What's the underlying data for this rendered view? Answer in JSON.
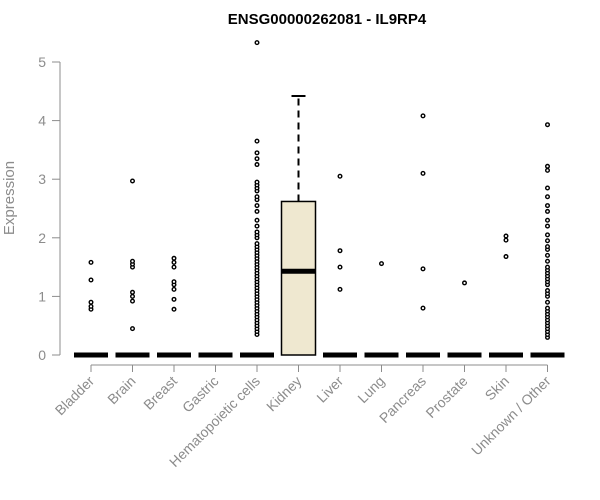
{
  "chart_data": {
    "type": "box",
    "title": "ENSG00000262081 - IL9RP4",
    "ylabel": "Expression",
    "xlabel": "",
    "ylim": [
      0,
      5.3
    ],
    "yticks": [
      0,
      1,
      2,
      3,
      4,
      5
    ],
    "grid": false,
    "box_fill": "#efe8d0",
    "categories": [
      "Bladder",
      "Brain",
      "Breast",
      "Gastric",
      "Hematopoietic cells",
      "Kidney",
      "Liver",
      "Lung",
      "Pancreas",
      "Prostate",
      "Skin",
      "Unknown / Other"
    ],
    "boxes": [
      {
        "category": "Bladder",
        "q1": 0,
        "median": 0,
        "q3": 0,
        "whisker_low": 0,
        "whisker_high": 0,
        "outliers": [
          0.78,
          0.83,
          0.9,
          1.28,
          1.58
        ]
      },
      {
        "category": "Brain",
        "q1": 0,
        "median": 0,
        "q3": 0,
        "whisker_low": 0,
        "whisker_high": 0,
        "outliers": [
          0.45,
          0.92,
          1.0,
          1.07,
          1.5,
          1.55,
          1.6,
          2.97
        ]
      },
      {
        "category": "Breast",
        "q1": 0,
        "median": 0,
        "q3": 0,
        "whisker_low": 0,
        "whisker_high": 0,
        "outliers": [
          0.78,
          0.95,
          1.12,
          1.2,
          1.25,
          1.5,
          1.58,
          1.65
        ]
      },
      {
        "category": "Gastric",
        "q1": 0,
        "median": 0,
        "q3": 0,
        "whisker_low": 0,
        "whisker_high": 0,
        "outliers": []
      },
      {
        "category": "Hematopoietic cells",
        "q1": 0,
        "median": 0,
        "q3": 0,
        "whisker_low": 0,
        "whisker_high": 0,
        "outliers": [
          0.35,
          0.4,
          0.45,
          0.5,
          0.55,
          0.6,
          0.65,
          0.7,
          0.75,
          0.8,
          0.85,
          0.9,
          0.95,
          1.0,
          1.05,
          1.1,
          1.15,
          1.2,
          1.25,
          1.3,
          1.35,
          1.4,
          1.45,
          1.5,
          1.55,
          1.6,
          1.65,
          1.7,
          1.75,
          1.8,
          1.85,
          1.9,
          2.0,
          2.05,
          2.1,
          2.2,
          2.3,
          2.45,
          2.55,
          2.65,
          2.7,
          2.8,
          2.85,
          2.9,
          2.95,
          3.25,
          3.35,
          3.45,
          3.65,
          5.33
        ]
      },
      {
        "category": "Kidney",
        "q1": 0,
        "median": 1.43,
        "q3": 2.62,
        "whisker_low": 0,
        "whisker_high": 4.42,
        "outliers": []
      },
      {
        "category": "Liver",
        "q1": 0,
        "median": 0,
        "q3": 0,
        "whisker_low": 0,
        "whisker_high": 0,
        "outliers": [
          1.12,
          1.5,
          1.78,
          3.05
        ]
      },
      {
        "category": "Lung",
        "q1": 0,
        "median": 0,
        "q3": 0,
        "whisker_low": 0,
        "whisker_high": 0,
        "outliers": [
          1.56
        ]
      },
      {
        "category": "Pancreas",
        "q1": 0,
        "median": 0,
        "q3": 0,
        "whisker_low": 0,
        "whisker_high": 0,
        "outliers": [
          0.8,
          1.47,
          3.1,
          4.08
        ]
      },
      {
        "category": "Prostate",
        "q1": 0,
        "median": 0,
        "q3": 0,
        "whisker_low": 0,
        "whisker_high": 0,
        "outliers": [
          1.23
        ]
      },
      {
        "category": "Skin",
        "q1": 0,
        "median": 0,
        "q3": 0,
        "whisker_low": 0,
        "whisker_high": 0,
        "outliers": [
          1.68,
          1.96,
          2.03
        ]
      },
      {
        "category": "Unknown / Other",
        "q1": 0,
        "median": 0,
        "q3": 0,
        "whisker_low": 0,
        "whisker_high": 0,
        "outliers": [
          0.3,
          0.35,
          0.4,
          0.45,
          0.5,
          0.55,
          0.6,
          0.65,
          0.7,
          0.75,
          0.8,
          0.9,
          1.0,
          1.05,
          1.1,
          1.2,
          1.25,
          1.3,
          1.35,
          1.4,
          1.45,
          1.5,
          1.6,
          1.7,
          1.8,
          1.85,
          1.95,
          2.05,
          2.2,
          2.3,
          2.45,
          2.55,
          2.7,
          2.85,
          3.15,
          3.22,
          3.93
        ]
      }
    ]
  }
}
